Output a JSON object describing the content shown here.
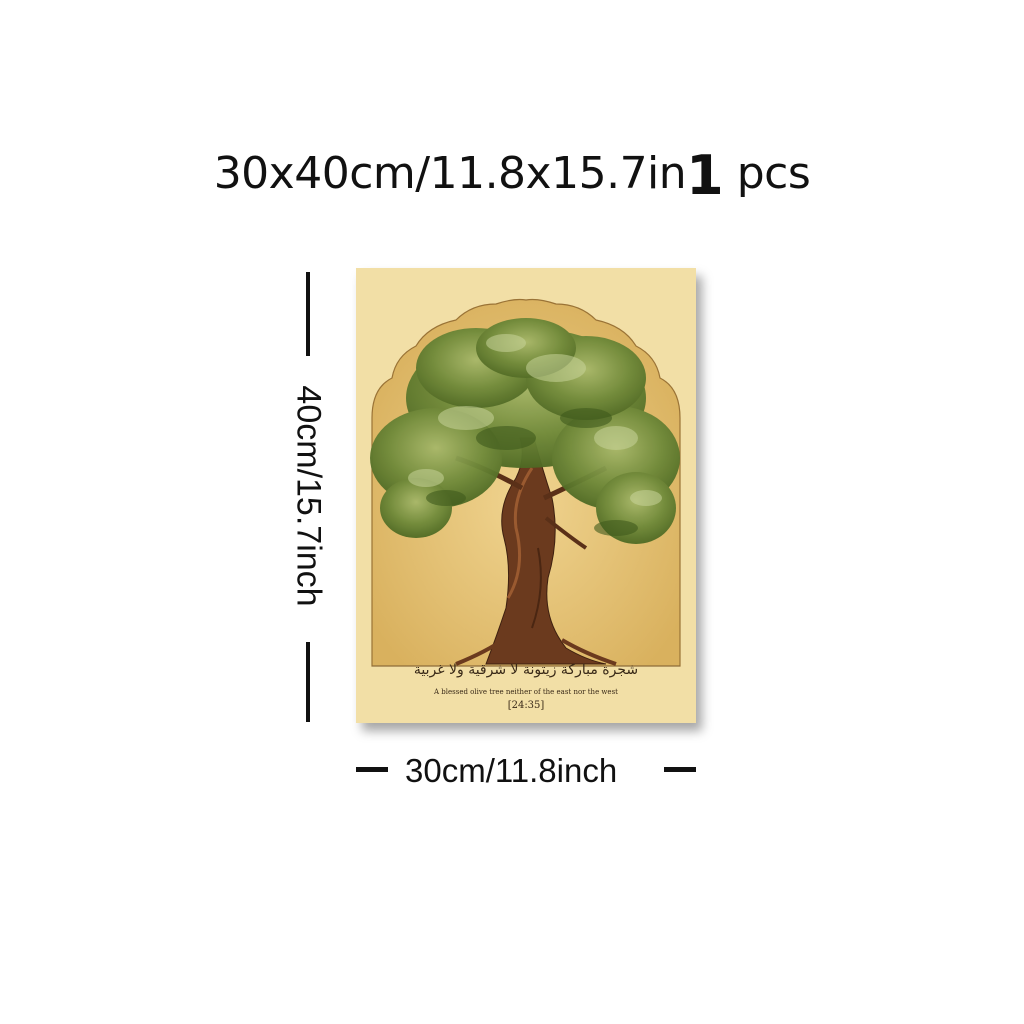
{
  "header": {
    "size_text": "30x40cm/11.8x15.7in",
    "quantity": "1",
    "unit": "pcs"
  },
  "dimensions": {
    "height_label": "40cm/15.7inch",
    "width_label": "30cm/11.8inch"
  },
  "poster": {
    "arabic_text": "شجرة مباركة زيتونة لا شرقية ولا غربية",
    "english_text": "A blessed olive tree neither of the east nor the west",
    "reference": "[24:35]",
    "colors": {
      "paper": "#f2dfa6",
      "arch_fill": "#e8c878",
      "foliage": "#6f8a3a",
      "trunk": "#6b3a1e"
    }
  }
}
